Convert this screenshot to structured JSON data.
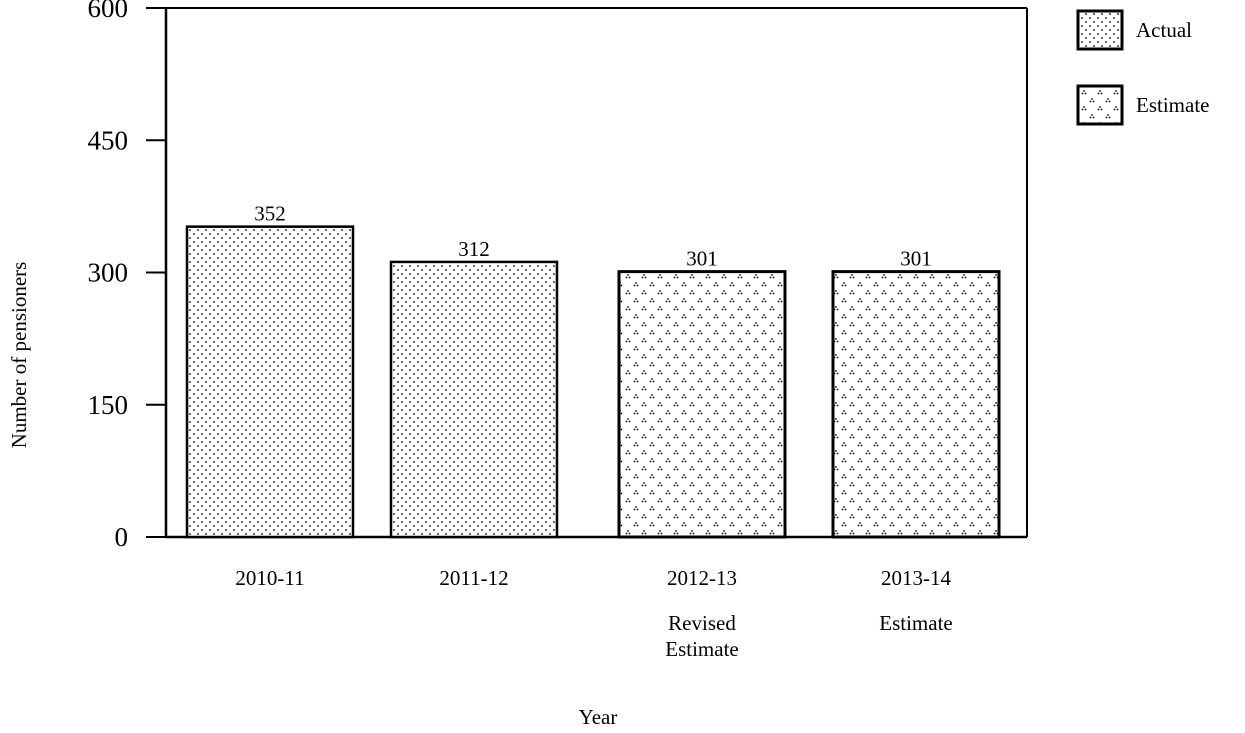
{
  "chart_data": {
    "type": "bar",
    "categories": [
      "2010-11",
      "2011-12",
      "2012-13",
      "2013-14"
    ],
    "category_sublabels": [
      "",
      "",
      "Revised\nEstimate",
      "Estimate"
    ],
    "values": [
      352,
      312,
      301,
      301
    ],
    "value_type": [
      "Actual",
      "Actual",
      "Estimate",
      "Estimate"
    ],
    "data_labels": [
      "352",
      "312",
      "301",
      "301"
    ],
    "xlabel": "Year",
    "ylabel": "Number of pensioners",
    "ylim": [
      0,
      600
    ],
    "yticks": [
      0,
      150,
      300,
      450,
      600
    ],
    "grid": false,
    "legend": {
      "position": "top-right",
      "entries": [
        {
          "label": "Actual",
          "pattern": "fine-dots"
        },
        {
          "label": "Estimate",
          "pattern": "triangle-dots"
        }
      ]
    }
  }
}
